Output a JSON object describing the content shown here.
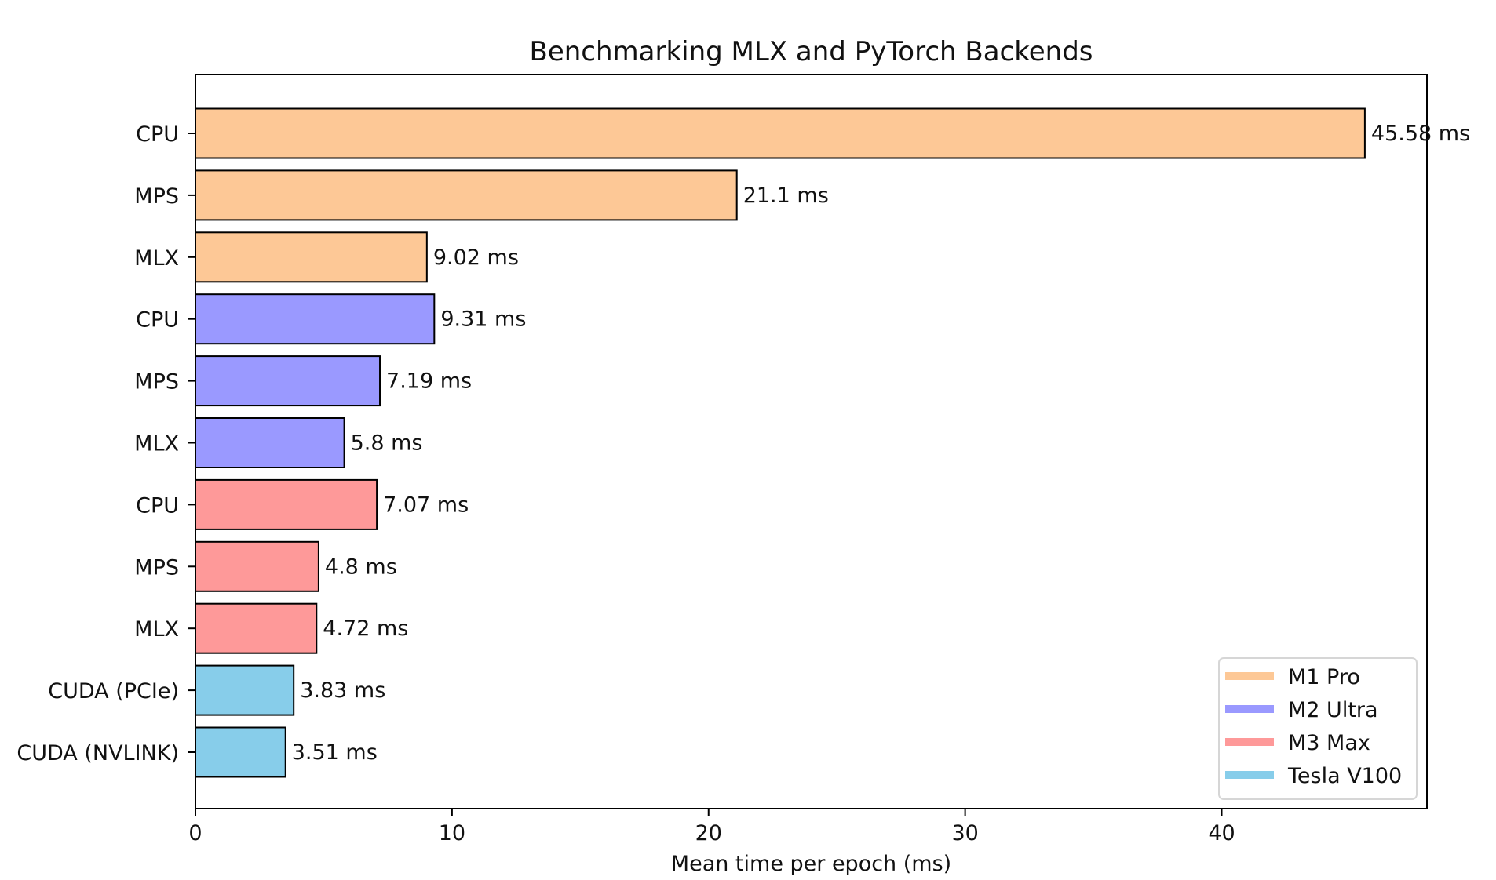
{
  "chart_data": {
    "type": "bar",
    "orientation": "horizontal",
    "title": "Benchmarking MLX and PyTorch Backends",
    "xlabel": "Mean time per epoch (ms)",
    "ylabel": "",
    "xlim": [
      0,
      48
    ],
    "x_ticks": [
      0,
      10,
      20,
      30,
      40
    ],
    "grid": false,
    "legend_position": "bottom-right",
    "value_suffix": " ms",
    "series": [
      {
        "name": "M1 Pro",
        "color": "#fdc896"
      },
      {
        "name": "M2 Ultra",
        "color": "#9a99ff"
      },
      {
        "name": "M3 Max",
        "color": "#fe9999"
      },
      {
        "name": "Tesla V100",
        "color": "#87cdea"
      }
    ],
    "bars": [
      {
        "category": "CPU",
        "series": 0,
        "value": 45.58,
        "label": "45.58 ms"
      },
      {
        "category": "MPS",
        "series": 0,
        "value": 21.1,
        "label": "21.1 ms"
      },
      {
        "category": "MLX",
        "series": 0,
        "value": 9.02,
        "label": "9.02 ms"
      },
      {
        "category": "CPU",
        "series": 1,
        "value": 9.31,
        "label": "9.31 ms"
      },
      {
        "category": "MPS",
        "series": 1,
        "value": 7.19,
        "label": "7.19 ms"
      },
      {
        "category": "MLX",
        "series": 1,
        "value": 5.8,
        "label": "5.8 ms"
      },
      {
        "category": "CPU",
        "series": 2,
        "value": 7.07,
        "label": "7.07 ms"
      },
      {
        "category": "MPS",
        "series": 2,
        "value": 4.8,
        "label": "4.8 ms"
      },
      {
        "category": "MLX",
        "series": 2,
        "value": 4.72,
        "label": "4.72 ms"
      },
      {
        "category": "CUDA (PCIe)",
        "series": 3,
        "value": 3.83,
        "label": "3.83 ms"
      },
      {
        "category": "CUDA (NVLINK)",
        "series": 3,
        "value": 3.51,
        "label": "3.51 ms"
      }
    ]
  }
}
